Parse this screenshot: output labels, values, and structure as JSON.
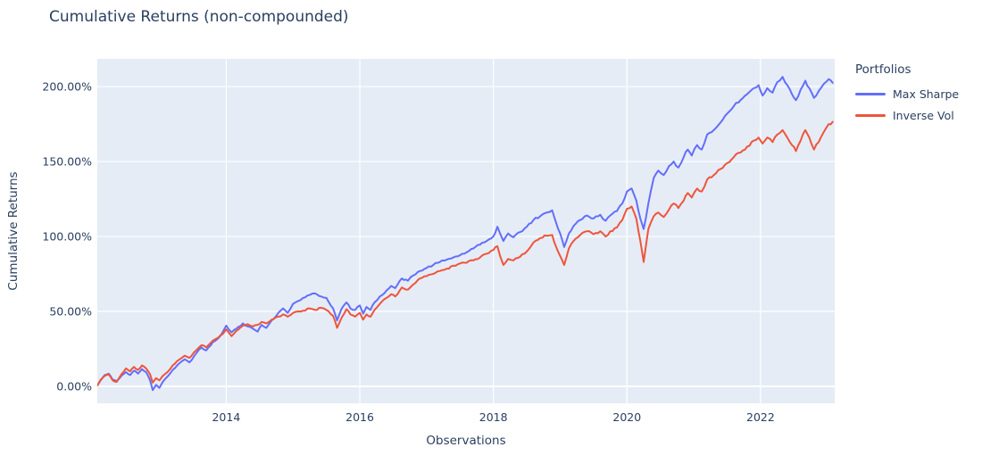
{
  "chart_data": {
    "type": "line",
    "title": "Cumulative Returns (non-compounded)",
    "xaxis": {
      "title": "Observations",
      "range": [
        2012.07,
        2023.11
      ],
      "tick_values": [
        2014,
        2016,
        2018,
        2020,
        2022
      ],
      "tick_labels": [
        "2014",
        "2016",
        "2018",
        "2020",
        "2022"
      ]
    },
    "yaxis": {
      "title": "Cumulative Returns",
      "unit": "%",
      "range": [
        -11.3,
        218.5
      ],
      "tick_values": [
        0,
        50,
        100,
        150,
        200
      ],
      "tick_labels": [
        "0.00%",
        "50.00%",
        "100.00%",
        "150.00%",
        "200.00%"
      ]
    },
    "legend": {
      "title": "Portfolios",
      "position": "top-right-outside"
    },
    "grid": true,
    "colors": {
      "plot_bg": "#E5ECF6",
      "grid": "#FFFFFF",
      "text": "#2a3f5f",
      "paper_bg": "#FFFFFF"
    },
    "series": [
      {
        "name": "Max Sharpe",
        "color": "#636EFA",
        "points": [
          [
            2012.07,
            0.5
          ],
          [
            2012.12,
            4
          ],
          [
            2012.18,
            7.5
          ],
          [
            2012.24,
            8.5
          ],
          [
            2012.3,
            4.5
          ],
          [
            2012.36,
            3.5
          ],
          [
            2012.43,
            7
          ],
          [
            2012.5,
            9.5
          ],
          [
            2012.56,
            7.5
          ],
          [
            2012.62,
            10.5
          ],
          [
            2012.68,
            8.5
          ],
          [
            2012.74,
            11.5
          ],
          [
            2012.8,
            9.5
          ],
          [
            2012.86,
            4
          ],
          [
            2012.9,
            -2.5
          ],
          [
            2012.95,
            1
          ],
          [
            2013.0,
            -1
          ],
          [
            2013.05,
            3
          ],
          [
            2013.12,
            6.5
          ],
          [
            2013.2,
            11
          ],
          [
            2013.3,
            15.5
          ],
          [
            2013.38,
            18
          ],
          [
            2013.45,
            16
          ],
          [
            2013.55,
            22
          ],
          [
            2013.63,
            26
          ],
          [
            2013.7,
            24
          ],
          [
            2013.8,
            29.5
          ],
          [
            2013.88,
            32
          ],
          [
            2013.95,
            36.5
          ],
          [
            2014.0,
            40.5
          ],
          [
            2014.08,
            36
          ],
          [
            2014.15,
            38.5
          ],
          [
            2014.25,
            42
          ],
          [
            2014.32,
            40
          ],
          [
            2014.4,
            38.5
          ],
          [
            2014.47,
            36.5
          ],
          [
            2014.53,
            41
          ],
          [
            2014.6,
            39
          ],
          [
            2014.68,
            44
          ],
          [
            2014.78,
            49
          ],
          [
            2014.85,
            52
          ],
          [
            2014.92,
            49
          ],
          [
            2015.0,
            55
          ],
          [
            2015.08,
            57
          ],
          [
            2015.15,
            59
          ],
          [
            2015.25,
            61
          ],
          [
            2015.33,
            62
          ],
          [
            2015.42,
            60
          ],
          [
            2015.5,
            59
          ],
          [
            2015.6,
            52
          ],
          [
            2015.66,
            44
          ],
          [
            2015.73,
            52
          ],
          [
            2015.8,
            56
          ],
          [
            2015.86,
            52
          ],
          [
            2015.93,
            51
          ],
          [
            2016.0,
            54
          ],
          [
            2016.05,
            48.5
          ],
          [
            2016.1,
            53
          ],
          [
            2016.16,
            51
          ],
          [
            2016.22,
            56
          ],
          [
            2016.3,
            60
          ],
          [
            2016.4,
            64
          ],
          [
            2016.47,
            67
          ],
          [
            2016.53,
            65.5
          ],
          [
            2016.63,
            72
          ],
          [
            2016.72,
            70.5
          ],
          [
            2016.8,
            74
          ],
          [
            2016.9,
            77
          ],
          [
            2017.0,
            79
          ],
          [
            2017.1,
            81
          ],
          [
            2017.2,
            83
          ],
          [
            2017.3,
            84.5
          ],
          [
            2017.4,
            86
          ],
          [
            2017.5,
            87.5
          ],
          [
            2017.6,
            89.5
          ],
          [
            2017.7,
            92
          ],
          [
            2017.8,
            94.5
          ],
          [
            2017.9,
            97
          ],
          [
            2018.0,
            100
          ],
          [
            2018.06,
            106.5
          ],
          [
            2018.1,
            102
          ],
          [
            2018.15,
            97
          ],
          [
            2018.22,
            102
          ],
          [
            2018.3,
            99.5
          ],
          [
            2018.4,
            103
          ],
          [
            2018.5,
            106.5
          ],
          [
            2018.6,
            111
          ],
          [
            2018.7,
            113.5
          ],
          [
            2018.8,
            116
          ],
          [
            2018.88,
            117.5
          ],
          [
            2018.94,
            109
          ],
          [
            2019.0,
            102
          ],
          [
            2019.06,
            93
          ],
          [
            2019.13,
            102
          ],
          [
            2019.2,
            107
          ],
          [
            2019.3,
            111
          ],
          [
            2019.4,
            114
          ],
          [
            2019.5,
            112
          ],
          [
            2019.6,
            114.5
          ],
          [
            2019.68,
            110.5
          ],
          [
            2019.75,
            114
          ],
          [
            2019.85,
            117
          ],
          [
            2019.93,
            122
          ],
          [
            2020.0,
            130
          ],
          [
            2020.07,
            132
          ],
          [
            2020.14,
            124
          ],
          [
            2020.2,
            112
          ],
          [
            2020.25,
            105
          ],
          [
            2020.32,
            122
          ],
          [
            2020.4,
            139
          ],
          [
            2020.47,
            144
          ],
          [
            2020.55,
            141
          ],
          [
            2020.63,
            147
          ],
          [
            2020.7,
            150
          ],
          [
            2020.77,
            146
          ],
          [
            2020.85,
            153
          ],
          [
            2020.91,
            158
          ],
          [
            2020.97,
            154
          ],
          [
            2021.05,
            161
          ],
          [
            2021.12,
            158
          ],
          [
            2021.2,
            168
          ],
          [
            2021.3,
            171
          ],
          [
            2021.4,
            176
          ],
          [
            2021.5,
            182
          ],
          [
            2021.6,
            187
          ],
          [
            2021.7,
            191
          ],
          [
            2021.8,
            195
          ],
          [
            2021.9,
            199
          ],
          [
            2021.97,
            201
          ],
          [
            2022.03,
            194
          ],
          [
            2022.1,
            199
          ],
          [
            2022.18,
            196
          ],
          [
            2022.25,
            203
          ],
          [
            2022.33,
            206.5
          ],
          [
            2022.4,
            201
          ],
          [
            2022.47,
            195
          ],
          [
            2022.53,
            191
          ],
          [
            2022.6,
            198
          ],
          [
            2022.67,
            204
          ],
          [
            2022.73,
            199
          ],
          [
            2022.8,
            192.5
          ],
          [
            2022.87,
            197
          ],
          [
            2022.95,
            202
          ],
          [
            2023.02,
            205
          ],
          [
            2023.08,
            202.5
          ]
        ]
      },
      {
        "name": "Inverse Vol",
        "color": "#EF553B",
        "points": [
          [
            2012.07,
            0.5
          ],
          [
            2012.12,
            4.5
          ],
          [
            2012.18,
            7
          ],
          [
            2012.24,
            8
          ],
          [
            2012.3,
            4
          ],
          [
            2012.36,
            3
          ],
          [
            2012.43,
            8
          ],
          [
            2012.5,
            12
          ],
          [
            2012.56,
            10
          ],
          [
            2012.62,
            13
          ],
          [
            2012.68,
            11
          ],
          [
            2012.74,
            14
          ],
          [
            2012.8,
            12
          ],
          [
            2012.86,
            8
          ],
          [
            2012.9,
            2.5
          ],
          [
            2012.95,
            5.5
          ],
          [
            2013.0,
            4
          ],
          [
            2013.05,
            7
          ],
          [
            2013.12,
            9.5
          ],
          [
            2013.2,
            14
          ],
          [
            2013.3,
            18
          ],
          [
            2013.38,
            20.5
          ],
          [
            2013.45,
            19
          ],
          [
            2013.55,
            24
          ],
          [
            2013.63,
            27.5
          ],
          [
            2013.7,
            26
          ],
          [
            2013.8,
            30.5
          ],
          [
            2013.88,
            32.5
          ],
          [
            2013.95,
            35
          ],
          [
            2014.0,
            38
          ],
          [
            2014.08,
            33.5
          ],
          [
            2014.15,
            37
          ],
          [
            2014.25,
            40.5
          ],
          [
            2014.32,
            41.5
          ],
          [
            2014.4,
            40
          ],
          [
            2014.47,
            41
          ],
          [
            2014.53,
            43
          ],
          [
            2014.6,
            42
          ],
          [
            2014.68,
            44.5
          ],
          [
            2014.78,
            46.5
          ],
          [
            2014.85,
            48
          ],
          [
            2014.92,
            46.5
          ],
          [
            2015.0,
            49
          ],
          [
            2015.08,
            50
          ],
          [
            2015.15,
            50.5
          ],
          [
            2015.25,
            52
          ],
          [
            2015.33,
            51
          ],
          [
            2015.42,
            52.5
          ],
          [
            2015.5,
            51
          ],
          [
            2015.6,
            47
          ],
          [
            2015.66,
            39
          ],
          [
            2015.73,
            46
          ],
          [
            2015.8,
            51.5
          ],
          [
            2015.86,
            48
          ],
          [
            2015.93,
            46.5
          ],
          [
            2016.0,
            49
          ],
          [
            2016.05,
            44.5
          ],
          [
            2016.1,
            48
          ],
          [
            2016.16,
            46.5
          ],
          [
            2016.22,
            51
          ],
          [
            2016.3,
            55
          ],
          [
            2016.4,
            59
          ],
          [
            2016.47,
            61.5
          ],
          [
            2016.53,
            60
          ],
          [
            2016.63,
            66
          ],
          [
            2016.72,
            64.5
          ],
          [
            2016.8,
            68
          ],
          [
            2016.9,
            72
          ],
          [
            2017.0,
            73.5
          ],
          [
            2017.1,
            75
          ],
          [
            2017.2,
            77
          ],
          [
            2017.3,
            78.5
          ],
          [
            2017.4,
            80.5
          ],
          [
            2017.5,
            82
          ],
          [
            2017.6,
            82.5
          ],
          [
            2017.7,
            84
          ],
          [
            2017.8,
            86
          ],
          [
            2017.9,
            88.5
          ],
          [
            2018.0,
            91
          ],
          [
            2018.06,
            93.5
          ],
          [
            2018.1,
            87
          ],
          [
            2018.15,
            81
          ],
          [
            2018.22,
            85
          ],
          [
            2018.3,
            84
          ],
          [
            2018.4,
            86.5
          ],
          [
            2018.5,
            90
          ],
          [
            2018.6,
            96
          ],
          [
            2018.7,
            99
          ],
          [
            2018.8,
            100.5
          ],
          [
            2018.88,
            101
          ],
          [
            2018.94,
            93
          ],
          [
            2019.0,
            87
          ],
          [
            2019.06,
            81
          ],
          [
            2019.13,
            92
          ],
          [
            2019.2,
            97
          ],
          [
            2019.3,
            101
          ],
          [
            2019.4,
            103.5
          ],
          [
            2019.5,
            101.5
          ],
          [
            2019.6,
            103.5
          ],
          [
            2019.68,
            100
          ],
          [
            2019.75,
            103.5
          ],
          [
            2019.85,
            106
          ],
          [
            2019.93,
            111
          ],
          [
            2020.0,
            118.5
          ],
          [
            2020.07,
            120
          ],
          [
            2020.14,
            112
          ],
          [
            2020.2,
            97
          ],
          [
            2020.25,
            83
          ],
          [
            2020.32,
            105
          ],
          [
            2020.4,
            113.5
          ],
          [
            2020.47,
            116
          ],
          [
            2020.55,
            113
          ],
          [
            2020.63,
            118
          ],
          [
            2020.7,
            122
          ],
          [
            2020.77,
            119
          ],
          [
            2020.85,
            124
          ],
          [
            2020.91,
            129
          ],
          [
            2020.97,
            126
          ],
          [
            2021.05,
            132
          ],
          [
            2021.12,
            130
          ],
          [
            2021.2,
            138
          ],
          [
            2021.3,
            141
          ],
          [
            2021.4,
            145
          ],
          [
            2021.5,
            149
          ],
          [
            2021.6,
            153
          ],
          [
            2021.7,
            156
          ],
          [
            2021.8,
            160
          ],
          [
            2021.9,
            164
          ],
          [
            2021.97,
            166
          ],
          [
            2022.03,
            162
          ],
          [
            2022.1,
            166
          ],
          [
            2022.18,
            163
          ],
          [
            2022.25,
            168
          ],
          [
            2022.33,
            171
          ],
          [
            2022.4,
            166
          ],
          [
            2022.47,
            161
          ],
          [
            2022.53,
            157
          ],
          [
            2022.6,
            164
          ],
          [
            2022.67,
            171
          ],
          [
            2022.73,
            166
          ],
          [
            2022.8,
            158
          ],
          [
            2022.87,
            163
          ],
          [
            2022.95,
            170
          ],
          [
            2023.02,
            175
          ],
          [
            2023.08,
            176.5
          ]
        ]
      }
    ]
  }
}
